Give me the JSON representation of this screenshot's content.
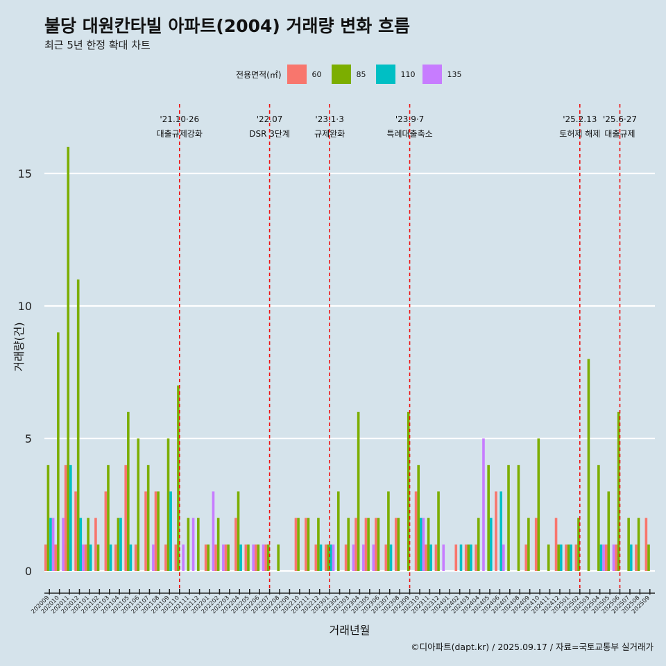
{
  "title": "불당 대원칸타빌 아파트(2004) 거래량 변화 흐름",
  "subtitle": "최근 5년 한정 확대 차트",
  "caption": "©디아파트(dapt.kr) / 2025.09.17 / 자료=국토교통부 실거래가",
  "legend": {
    "title": "전용면적(㎡)",
    "items": [
      {
        "label": "60",
        "color": "#F8766D"
      },
      {
        "label": "85",
        "color": "#7CAE00"
      },
      {
        "label": "110",
        "color": "#00BFC4"
      },
      {
        "label": "135",
        "color": "#C77CFF"
      }
    ]
  },
  "chart_data": {
    "type": "bar",
    "xlabel": "거래년월",
    "ylabel": "거래량(건)",
    "ylim": [
      0,
      16
    ],
    "yticks": [
      0,
      5,
      10,
      15
    ],
    "grid": true,
    "series_names": [
      "60",
      "85",
      "110",
      "135"
    ],
    "categories": [
      "202009",
      "202010",
      "202011",
      "202012",
      "202101",
      "202102",
      "202103",
      "202104",
      "202105",
      "202106",
      "202107",
      "202108",
      "202109",
      "202110",
      "202111",
      "202112",
      "202201",
      "202202",
      "202203",
      "202204",
      "202205",
      "202206",
      "202207",
      "202208",
      "202209",
      "202210",
      "202211",
      "202212",
      "202301",
      "202302",
      "202303",
      "202304",
      "202305",
      "202306",
      "202307",
      "202308",
      "202309",
      "202310",
      "202311",
      "202312",
      "202401",
      "202402",
      "202403",
      "202404",
      "202405",
      "202406",
      "202407",
      "202408",
      "202409",
      "202410",
      "202411",
      "202412",
      "202501",
      "202502",
      "202503",
      "202504",
      "202505",
      "202506",
      "202507",
      "202508",
      "202509"
    ],
    "values": [
      [
        1,
        4,
        2,
        2
      ],
      [
        1,
        9,
        0,
        2
      ],
      [
        4,
        16,
        4,
        0
      ],
      [
        3,
        11,
        2,
        1
      ],
      [
        1,
        2,
        1,
        0
      ],
      [
        2,
        1,
        0,
        0
      ],
      [
        3,
        4,
        1,
        0
      ],
      [
        1,
        2,
        2,
        0
      ],
      [
        4,
        6,
        1,
        0
      ],
      [
        1,
        5,
        0,
        0
      ],
      [
        3,
        4,
        0,
        1
      ],
      [
        3,
        3,
        0,
        0
      ],
      [
        1,
        5,
        3,
        0
      ],
      [
        1,
        7,
        0,
        1
      ],
      [
        0,
        2,
        0,
        2
      ],
      [
        0,
        2,
        0,
        0
      ],
      [
        1,
        1,
        0,
        3
      ],
      [
        1,
        2,
        0,
        1
      ],
      [
        1,
        1,
        0,
        0
      ],
      [
        2,
        3,
        1,
        0
      ],
      [
        1,
        1,
        0,
        1
      ],
      [
        1,
        1,
        0,
        1
      ],
      [
        1,
        1,
        0,
        0
      ],
      [
        0,
        1,
        0,
        0
      ],
      [
        0,
        0,
        0,
        0
      ],
      [
        2,
        2,
        0,
        0
      ],
      [
        2,
        2,
        0,
        0
      ],
      [
        1,
        2,
        1,
        0
      ],
      [
        1,
        1,
        1,
        1
      ],
      [
        0,
        3,
        0,
        0
      ],
      [
        1,
        2,
        0,
        1
      ],
      [
        2,
        6,
        0,
        1
      ],
      [
        2,
        2,
        0,
        1
      ],
      [
        2,
        2,
        0,
        0
      ],
      [
        1,
        3,
        1,
        0
      ],
      [
        2,
        2,
        0,
        0
      ],
      [
        0,
        6,
        0,
        0
      ],
      [
        3,
        4,
        2,
        2
      ],
      [
        1,
        2,
        1,
        0
      ],
      [
        1,
        3,
        0,
        1
      ],
      [
        0,
        0,
        0,
        0
      ],
      [
        1,
        0,
        1,
        0
      ],
      [
        1,
        1,
        1,
        0
      ],
      [
        1,
        2,
        0,
        5
      ],
      [
        0,
        4,
        2,
        0
      ],
      [
        3,
        0,
        3,
        1
      ],
      [
        0,
        4,
        0,
        0
      ],
      [
        0,
        4,
        0,
        0
      ],
      [
        1,
        2,
        0,
        0
      ],
      [
        2,
        5,
        0,
        0
      ],
      [
        0,
        1,
        0,
        0
      ],
      [
        2,
        1,
        1,
        0
      ],
      [
        1,
        1,
        1,
        0
      ],
      [
        1,
        2,
        0,
        0
      ],
      [
        0,
        8,
        0,
        0
      ],
      [
        0,
        4,
        1,
        1
      ],
      [
        1,
        3,
        0,
        1
      ],
      [
        1,
        6,
        0,
        0
      ],
      [
        0,
        2,
        1,
        0
      ],
      [
        1,
        2,
        0,
        0
      ],
      [
        2,
        1,
        0,
        0
      ]
    ],
    "events": [
      {
        "category": "202110",
        "date": "'21.10·26",
        "label": "대출규제강화"
      },
      {
        "category": "202207",
        "date": "'22.07",
        "label": "DSR 3단계"
      },
      {
        "category": "202301",
        "date": "'23.1·3",
        "label": "규제완화"
      },
      {
        "category": "202309",
        "date": "'23.9·7",
        "label": "특례대출축소"
      },
      {
        "category": "202502",
        "date": "'25.2.13",
        "label": "토허제 해제"
      },
      {
        "category": "202506",
        "date": "'25.6·27",
        "label": "대출규제"
      }
    ]
  }
}
